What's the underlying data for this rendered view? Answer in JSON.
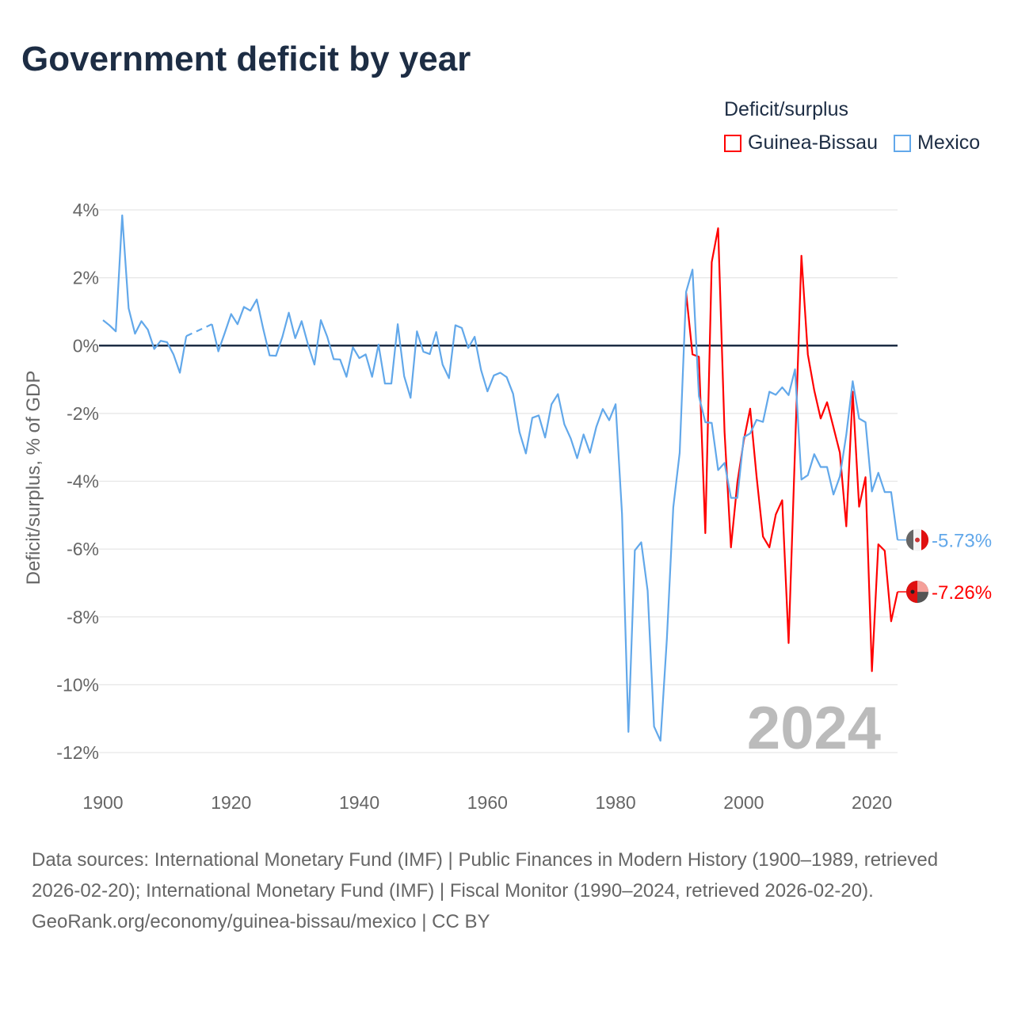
{
  "title": "Government deficit by year",
  "legend": {
    "title": "Deficit/surplus",
    "items": [
      "Guinea-Bissau",
      "Mexico"
    ]
  },
  "colors": {
    "Guinea-Bissau": "#ff0000",
    "Mexico": "#62a8ea"
  },
  "year_watermark": "2024",
  "footer": {
    "sources": "Data sources: International Monetary Fund (IMF) | Public Finances in Modern History (1900–1989, retrieved 2026-02-20); International Monetary Fund (IMF) | Fiscal Monitor (1990–2024, retrieved 2026-02-20).",
    "credit": "GeoRank.org/economy/guinea-bissau/mexico | CC BY"
  },
  "chart_data": {
    "type": "line",
    "title": "Government deficit by year",
    "xlabel": "",
    "ylabel": "Deficit/surplus, % of GDP",
    "xlim": [
      1900,
      2024
    ],
    "ylim": [
      -12,
      4
    ],
    "x_ticks": [
      "1900",
      "1920",
      "1940",
      "1960",
      "1980",
      "2000",
      "2020"
    ],
    "y_ticks": [
      "4%",
      "2%",
      "0%",
      "-2%",
      "-4%",
      "-6%",
      "-8%",
      "-10%",
      "-12%"
    ],
    "grid": true,
    "legend_position": "top-right",
    "end_labels": {
      "Mexico": "-5.73%",
      "Guinea-Bissau": "-7.26%"
    },
    "series": [
      {
        "name": "Mexico",
        "start_year": 1900,
        "values": [
          0.75,
          0.6,
          0.42,
          3.84,
          1.1,
          0.35,
          0.72,
          0.47,
          -0.1,
          0.14,
          0.1,
          -0.26,
          -0.8,
          0.28,
          null,
          null,
          null,
          0.63,
          -0.17,
          0.37,
          0.93,
          0.63,
          1.14,
          1.03,
          1.36,
          0.5,
          -0.29,
          -0.3,
          0.26,
          0.97,
          0.22,
          0.72,
          0.03,
          -0.56,
          0.75,
          0.26,
          -0.4,
          -0.41,
          -0.92,
          -0.05,
          -0.37,
          -0.26,
          -0.92,
          0.03,
          -1.12,
          -1.12,
          0.63,
          -0.9,
          -1.54,
          0.42,
          -0.18,
          -0.25,
          0.4,
          -0.56,
          -0.96,
          0.6,
          0.52,
          -0.07,
          0.26,
          -0.72,
          -1.35,
          -0.88,
          -0.8,
          -0.93,
          -1.42,
          -2.55,
          -3.18,
          -2.13,
          -2.06,
          -2.71,
          -1.73,
          -1.43,
          -2.32,
          -2.74,
          -3.32,
          -2.62,
          -3.16,
          -2.39,
          -1.87,
          -2.2,
          -1.73,
          -4.96,
          -11.39,
          -6.04,
          -5.8,
          -7.23,
          -11.23,
          -11.65,
          -8.65,
          -4.77,
          -3.16,
          1.58,
          2.24,
          -1.49,
          -2.26,
          -2.28,
          -3.67,
          -3.46,
          -4.49,
          -4.49,
          -2.7,
          -2.59,
          -2.19,
          -2.25,
          -1.36,
          -1.45,
          -1.23,
          -1.46,
          -0.7,
          -3.95,
          -3.82,
          -3.2,
          -3.58,
          -3.58,
          -4.39,
          -3.86,
          -2.63,
          -1.05,
          -2.15,
          -2.26,
          -4.3,
          -3.75,
          -4.32,
          -4.32,
          -5.73
        ]
      },
      {
        "name": "Guinea-Bissau",
        "start_year": 1991,
        "values": [
          1.56,
          -0.26,
          -0.33,
          -5.53,
          2.46,
          3.46,
          -2.54,
          -5.95,
          -4.04,
          -2.8,
          -1.86,
          -3.86,
          -5.63,
          -5.95,
          -4.98,
          -4.56,
          -8.77,
          -3.06,
          2.65,
          -0.26,
          -1.32,
          -2.15,
          -1.67,
          -2.41,
          -3.16,
          -5.33,
          -1.36,
          -4.75,
          -3.88,
          -9.6,
          -5.86,
          -6.05,
          -8.13,
          -7.26
        ]
      }
    ]
  }
}
